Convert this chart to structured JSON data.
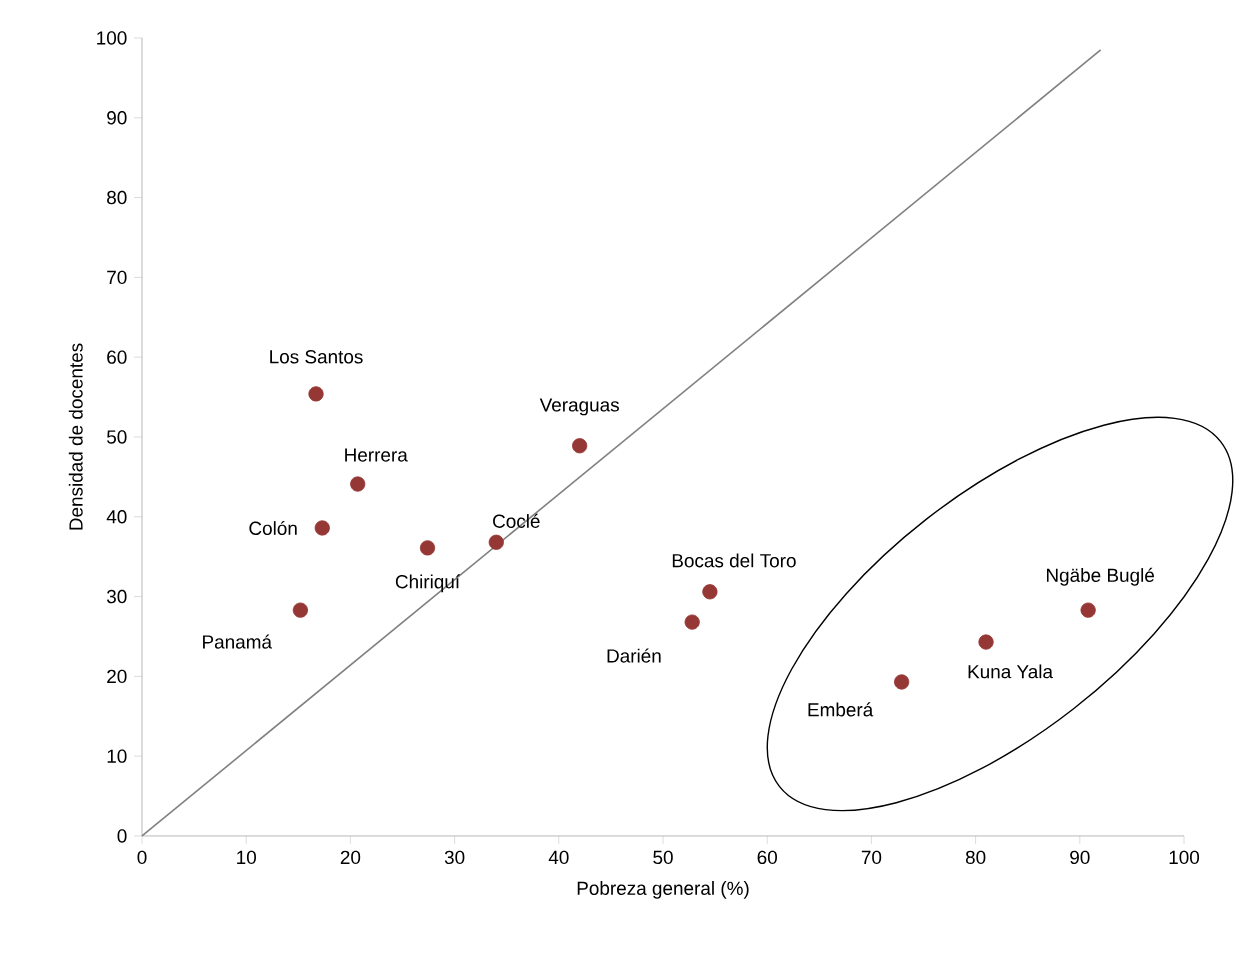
{
  "chart_data": {
    "type": "scatter",
    "xlabel": "Pobreza general (%)",
    "ylabel": "Densidad de docentes",
    "xlim": [
      0,
      100
    ],
    "ylim": [
      0,
      100
    ],
    "xticks": [
      0,
      10,
      20,
      30,
      40,
      50,
      60,
      70,
      80,
      90,
      100
    ],
    "yticks": [
      0,
      10,
      20,
      30,
      40,
      50,
      60,
      70,
      80,
      90,
      100
    ],
    "grid": false,
    "series": [
      {
        "marker": "circle",
        "color": "#953735",
        "x": [
          16.7,
          20.7,
          17.3,
          15.2,
          27.4,
          34.0,
          42.0,
          54.5,
          52.8,
          72.9,
          81.0,
          90.8
        ],
        "values": [
          55.4,
          44.1,
          38.6,
          28.3,
          36.1,
          36.8,
          48.9,
          30.6,
          26.8,
          19.3,
          24.3,
          28.3
        ]
      },
      {
        "type": "line",
        "marker": "none",
        "color": "#808080",
        "x": [
          0,
          92
        ],
        "values": [
          0,
          98.5
        ]
      }
    ],
    "annotations": [
      {
        "text": "Los Santos",
        "x": 16.7,
        "y": 55.4
      },
      {
        "text": "Herrera",
        "x": 20.7,
        "y": 44.1
      },
      {
        "text": "Colón",
        "x": 17.3,
        "y": 38.6
      },
      {
        "text": "Panamá",
        "x": 15.2,
        "y": 28.3
      },
      {
        "text": "Chiriquí",
        "x": 27.4,
        "y": 36.1
      },
      {
        "text": "Coclé",
        "x": 34.0,
        "y": 36.8
      },
      {
        "text": "Veraguas",
        "x": 42.0,
        "y": 48.9
      },
      {
        "text": "Bocas del Toro",
        "x": 54.5,
        "y": 30.6
      },
      {
        "text": "Darién",
        "x": 52.8,
        "y": 26.8
      },
      {
        "text": "Emberá",
        "x": 72.9,
        "y": 19.3
      },
      {
        "text": "Kuna Yala",
        "x": 81.0,
        "y": 24.3
      },
      {
        "text": "Ngäbe Buglé",
        "x": 90.8,
        "y": 28.3
      }
    ]
  }
}
